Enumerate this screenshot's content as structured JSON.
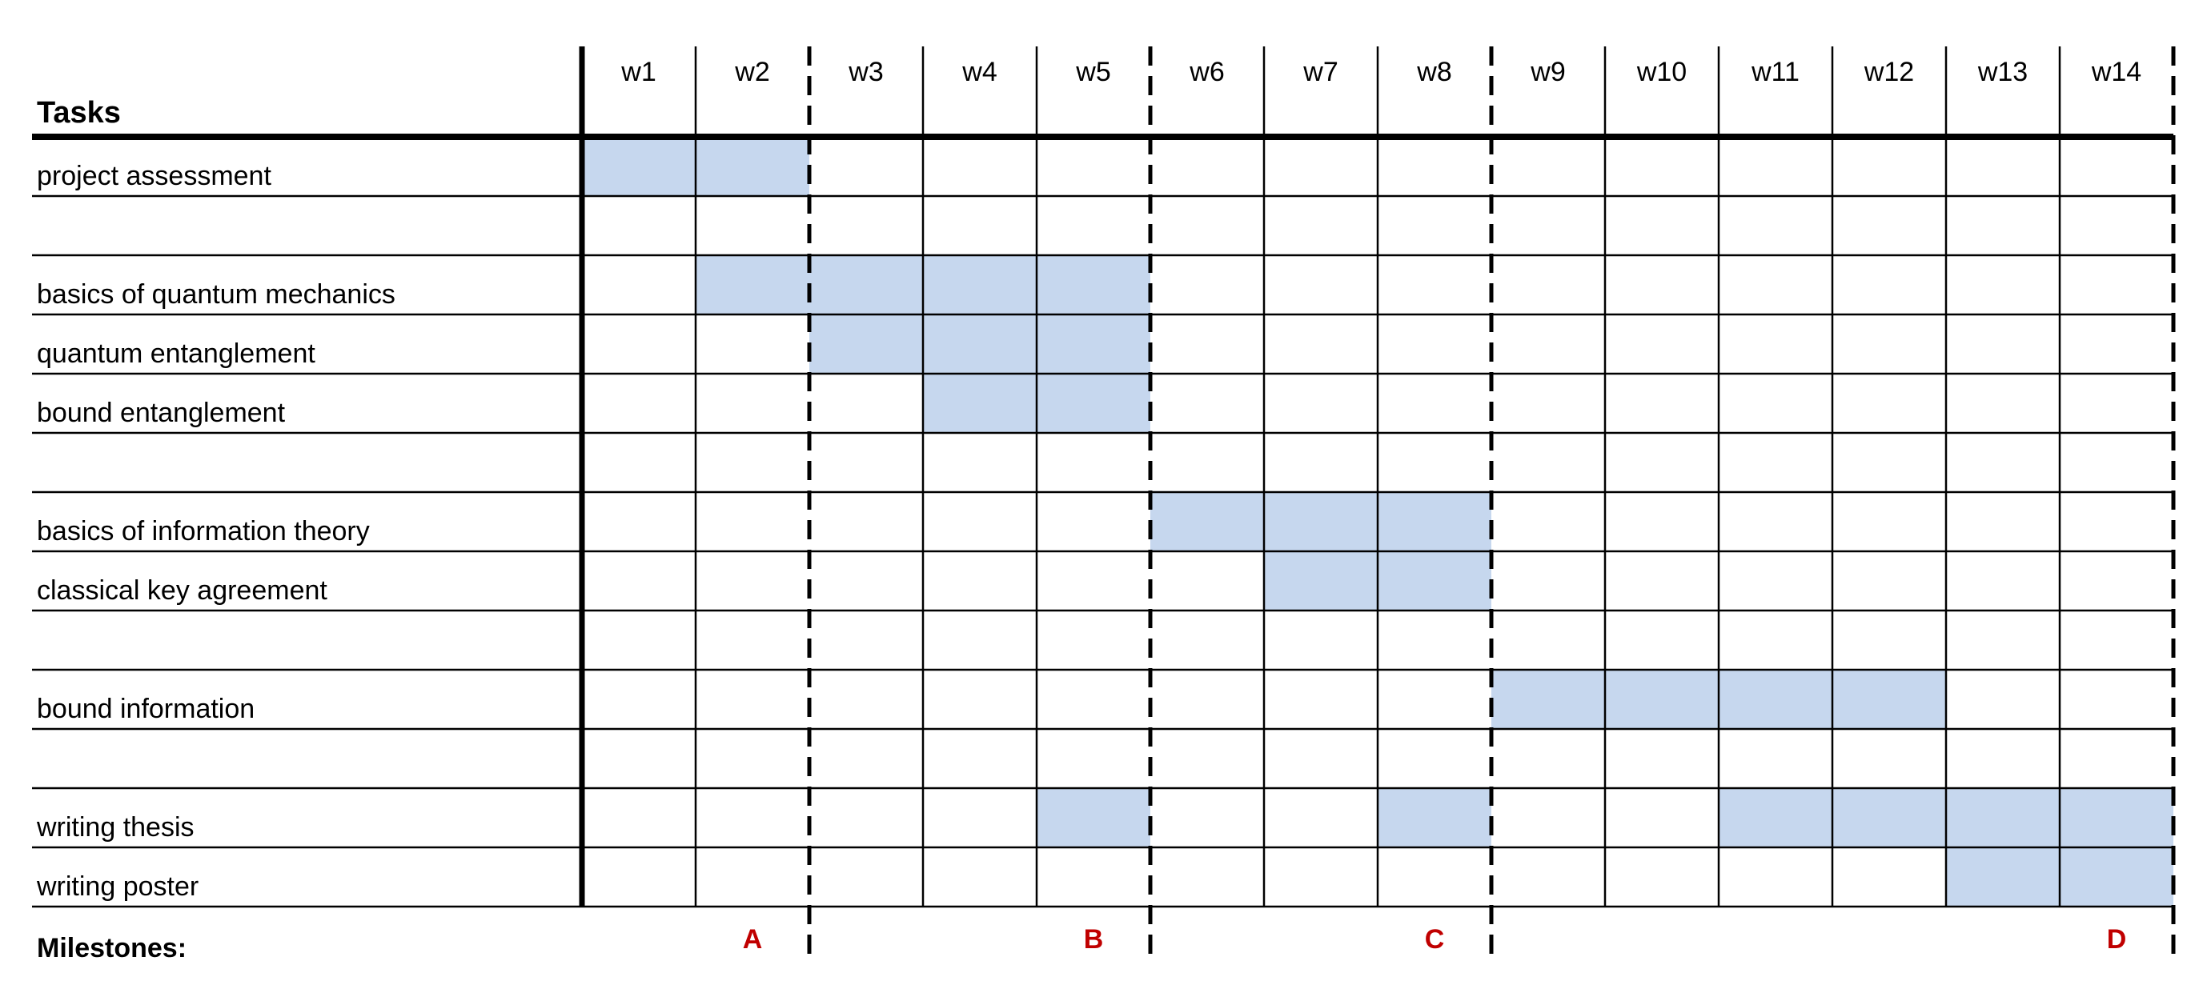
{
  "header": {
    "tasks_title": "Tasks"
  },
  "footer": {
    "milestones_label": "Milestones:"
  },
  "colors": {
    "bar": "#c6d7ee",
    "milestone": "#c00000",
    "grid": "#000000"
  },
  "chart_data": {
    "type": "gantt",
    "weeks": [
      "w1",
      "w2",
      "w3",
      "w4",
      "w5",
      "w6",
      "w7",
      "w8",
      "w9",
      "w10",
      "w11",
      "w12",
      "w13",
      "w14"
    ],
    "rows": [
      {
        "label": "project assessment",
        "weeks": [
          1,
          2
        ]
      },
      {
        "label": "",
        "weeks": []
      },
      {
        "label": "basics of quantum mechanics",
        "weeks": [
          2,
          3,
          4,
          5
        ]
      },
      {
        "label": "quantum entanglement",
        "weeks": [
          3,
          4,
          5
        ]
      },
      {
        "label": "bound entanglement",
        "weeks": [
          4,
          5
        ]
      },
      {
        "label": "",
        "weeks": []
      },
      {
        "label": "basics of information theory",
        "weeks": [
          6,
          7,
          8
        ]
      },
      {
        "label": "classical key agreement",
        "weeks": [
          7,
          8
        ]
      },
      {
        "label": "",
        "weeks": []
      },
      {
        "label": "bound information",
        "weeks": [
          9,
          10,
          11,
          12
        ]
      },
      {
        "label": "",
        "weeks": []
      },
      {
        "label": "writing thesis",
        "weeks": [
          5,
          8,
          11,
          12,
          13,
          14
        ]
      },
      {
        "label": "writing poster",
        "weeks": [
          13,
          14
        ]
      }
    ],
    "milestones": [
      {
        "label": "A",
        "after_week": 2
      },
      {
        "label": "B",
        "after_week": 5
      },
      {
        "label": "C",
        "after_week": 8
      },
      {
        "label": "D",
        "after_week": 14
      }
    ]
  }
}
